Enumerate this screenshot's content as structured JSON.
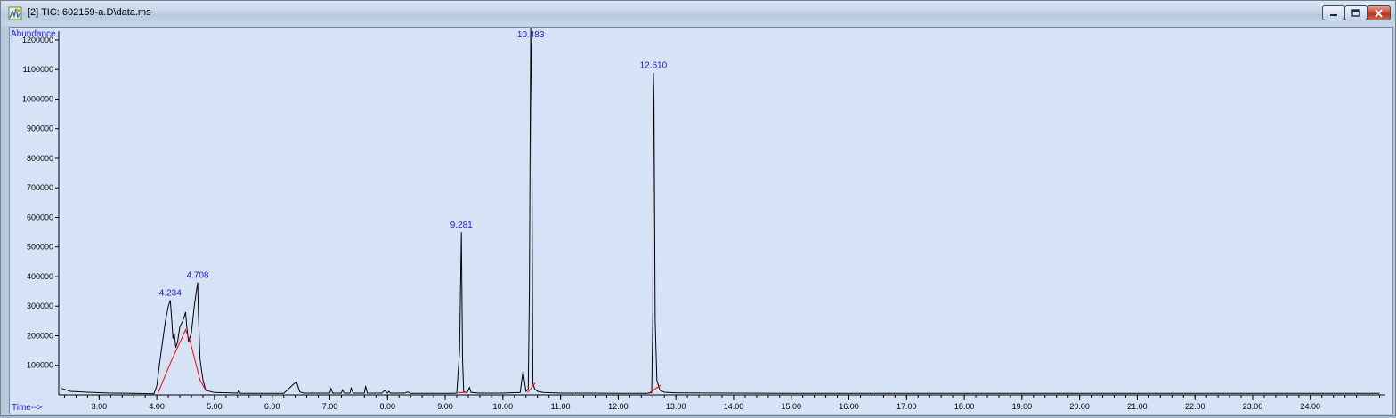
{
  "window": {
    "title": "[2] TIC: 602159-a.D\\data.ms",
    "icon": "chromatogram-app-icon",
    "controls": [
      "minimize",
      "maximize",
      "close"
    ]
  },
  "colors": {
    "plot_background": "#d6e3f7",
    "trace": "#000000",
    "baseline": "#ff0000",
    "peak_label": "#1a1adf",
    "axis_label": "#1a1adf"
  },
  "chart_data": {
    "type": "line",
    "xlabel": "Time-->",
    "ylabel": "Abundance",
    "xlim": [
      2.3,
      25.3
    ],
    "ylim": [
      0,
      1230000
    ],
    "x_ticks": [
      "3.00",
      "4.00",
      "5.00",
      "6.00",
      "7.00",
      "8.00",
      "9.00",
      "10.00",
      "11.00",
      "12.00",
      "13.00",
      "14.00",
      "15.00",
      "16.00",
      "17.00",
      "18.00",
      "19.00",
      "20.00",
      "21.00",
      "22.00",
      "23.00",
      "24.00"
    ],
    "y_ticks": [
      "100000",
      "200000",
      "300000",
      "400000",
      "500000",
      "600000",
      "700000",
      "800000",
      "900000",
      "1000000",
      "1100000",
      "1200000"
    ],
    "grid": false,
    "series": [
      {
        "x": [
          2.35,
          2.5,
          2.8,
          3.2,
          3.6,
          3.95,
          4.0,
          4.05,
          4.1,
          4.15,
          4.2,
          4.234,
          4.26,
          4.28,
          4.3,
          4.33,
          4.36,
          4.4,
          4.45,
          4.5,
          4.52,
          4.55,
          4.6,
          4.65,
          4.7,
          4.708,
          4.72,
          4.75,
          4.8,
          4.85,
          5.0,
          5.4,
          5.42,
          5.45,
          5.8,
          6.2,
          6.42,
          6.45,
          6.48,
          6.55,
          6.8,
          7.0,
          7.02,
          7.05,
          7.2,
          7.22,
          7.25,
          7.35,
          7.37,
          7.4,
          7.6,
          7.62,
          7.65,
          7.9,
          7.95,
          8.0,
          8.02,
          8.05,
          8.3,
          8.35,
          8.4,
          8.8,
          9.1,
          9.2,
          9.25,
          9.281,
          9.3,
          9.32,
          9.38,
          9.42,
          9.45,
          9.6,
          10.0,
          10.3,
          10.32,
          10.35,
          10.4,
          10.44,
          10.46,
          10.483,
          10.5,
          10.52,
          10.55,
          10.6,
          10.7,
          11.0,
          11.5,
          12.0,
          12.5,
          12.58,
          12.6,
          12.61,
          12.62,
          12.64,
          12.67,
          12.72,
          12.8,
          13.0,
          14.0,
          15.0,
          16.0,
          17.0,
          18.0,
          19.0,
          20.0,
          21.0,
          22.0,
          23.0,
          24.0,
          25.2
        ],
        "y": [
          22000,
          12000,
          9000,
          6000,
          5000,
          4000,
          30000,
          110000,
          180000,
          250000,
          300000,
          320000,
          250000,
          190000,
          210000,
          160000,
          180000,
          230000,
          250000,
          280000,
          230000,
          180000,
          210000,
          300000,
          370000,
          380000,
          280000,
          120000,
          50000,
          15000,
          8000,
          6000,
          15000,
          5000,
          5000,
          5000,
          45000,
          28000,
          10000,
          6000,
          6000,
          6000,
          22000,
          6000,
          6000,
          17000,
          6000,
          6000,
          25000,
          6000,
          6000,
          30000,
          6000,
          6000,
          15000,
          6000,
          12000,
          6000,
          6000,
          10000,
          5000,
          5000,
          5000,
          6000,
          150000,
          550000,
          120000,
          10000,
          8000,
          25000,
          8000,
          6000,
          6000,
          8000,
          40000,
          80000,
          12000,
          20000,
          350000,
          1250000,
          980000,
          40000,
          20000,
          12000,
          8000,
          6000,
          6000,
          5000,
          5000,
          8000,
          280000,
          1090000,
          990000,
          250000,
          50000,
          16000,
          9000,
          7000,
          6000,
          5000,
          5000,
          5000,
          5000,
          5000,
          5000,
          5000,
          5000,
          5000,
          5000,
          5000
        ]
      }
    ],
    "baselines": [
      {
        "x": [
          4.02,
          4.24,
          4.5,
          4.58,
          4.75,
          4.85
        ],
        "y": [
          5000,
          110000,
          220000,
          180000,
          50000,
          15000
        ]
      },
      {
        "x": [
          9.22,
          9.35
        ],
        "y": [
          8000,
          8000
        ]
      },
      {
        "x": [
          10.43,
          10.56
        ],
        "y": [
          8000,
          40000
        ]
      },
      {
        "x": [
          12.55,
          12.75
        ],
        "y": [
          8000,
          35000
        ]
      }
    ],
    "peak_labels": [
      {
        "label": "4.234",
        "x": 4.234,
        "y": 320000
      },
      {
        "label": "4.708",
        "x": 4.708,
        "y": 380000
      },
      {
        "label": "9.281",
        "x": 9.281,
        "y": 550000
      },
      {
        "label": "10.483",
        "x": 10.483,
        "y": 1250000
      },
      {
        "label": "12.610",
        "x": 12.61,
        "y": 1090000
      }
    ]
  }
}
